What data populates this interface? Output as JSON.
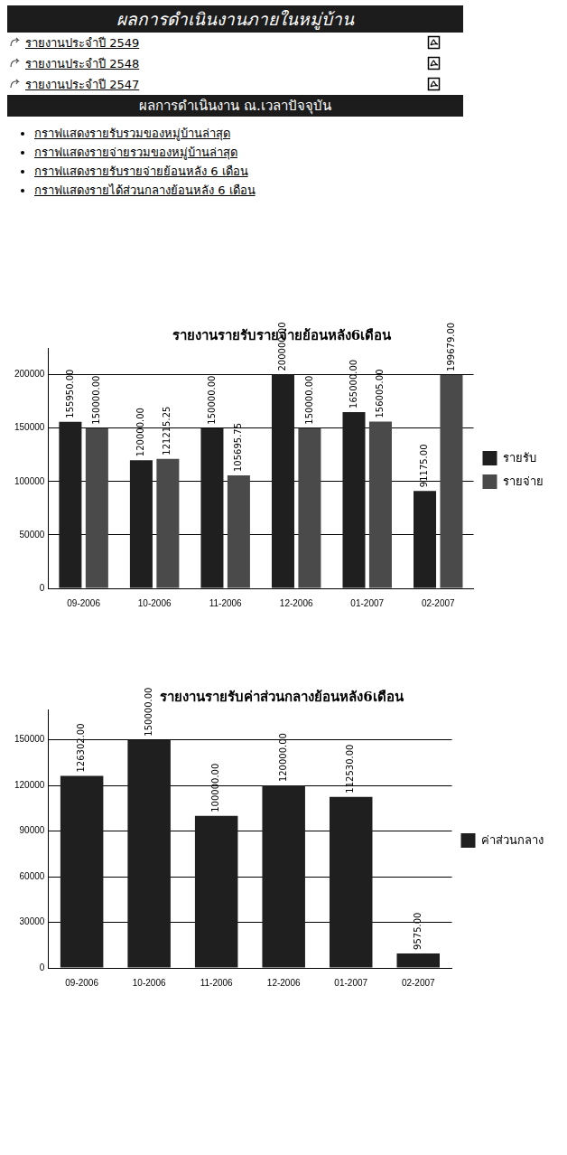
{
  "page": {
    "header": {
      "title": "ผลการดำเนินงานภายในหมู่บ้าน"
    },
    "reports": [
      "รายงานประจำปี 2549",
      "รายงานประจำปี 2548",
      "รายงานประจำปี 2547"
    ],
    "current": {
      "title": "ผลการดำเนินงาน ณ.เวลาปัจจุบัน",
      "links": [
        "กราฟแสดงรายรับรวมของหมู่บ้านล่าสุด",
        "กราฟแสดงรายจ่ายรวมของหมู่บ้านล่าสุด",
        "กราฟแสดงรายรับรายจ่ายย้อนหลัง 6 เดือน",
        "กราฟแสดงรายได้ส่วนกลางย้อนหลัง 6 เดือน"
      ]
    }
  },
  "chart_data": [
    {
      "type": "bar",
      "title": "รายงานรายรับรายจ่ายย้อนหลัง6เดือน",
      "categories": [
        "09-2006",
        "10-2006",
        "11-2006",
        "12-2006",
        "01-2007",
        "02-2007"
      ],
      "series": [
        {
          "name": "รายรับ",
          "color": "#1f1f1f",
          "values": [
            155950,
            120000,
            150000,
            200000,
            165000,
            91175
          ],
          "value_labels": [
            "155950.00",
            "120000.00",
            "150000.00",
            "200000.00",
            "165000.00",
            "91175.00"
          ]
        },
        {
          "name": "รายจ่าย",
          "color": "#4a4a4a",
          "values": [
            150000,
            121215.25,
            105695.75,
            150000,
            156005,
            199679
          ],
          "value_labels": [
            "150000.00",
            "121215.25",
            "105695.75",
            "150000.00",
            "156005.00",
            "199679.00"
          ]
        }
      ],
      "ylim": [
        0,
        225000
      ],
      "yticks": [
        0,
        50000,
        100000,
        150000,
        200000
      ],
      "grid": true,
      "legend": "right",
      "data_labels": true
    },
    {
      "type": "bar",
      "title": "รายงานรายรับค่าส่วนกลางย้อนหลัง6เดือน",
      "categories": [
        "09-2006",
        "10-2006",
        "11-2006",
        "12-2006",
        "01-2007",
        "02-2007"
      ],
      "series": [
        {
          "name": "ค่าส่วนกลาง",
          "color": "#1f1f1f",
          "values": [
            126302,
            150000,
            100000,
            120000,
            112530,
            9575
          ],
          "value_labels": [
            "126302.00",
            "150000.00",
            "100000.00",
            "120000.00",
            "112530.00",
            "9575.00"
          ]
        }
      ],
      "ylim": [
        0,
        170000
      ],
      "yticks": [
        0,
        30000,
        60000,
        90000,
        120000,
        150000
      ],
      "grid": true,
      "legend": "right",
      "data_labels": true
    }
  ]
}
